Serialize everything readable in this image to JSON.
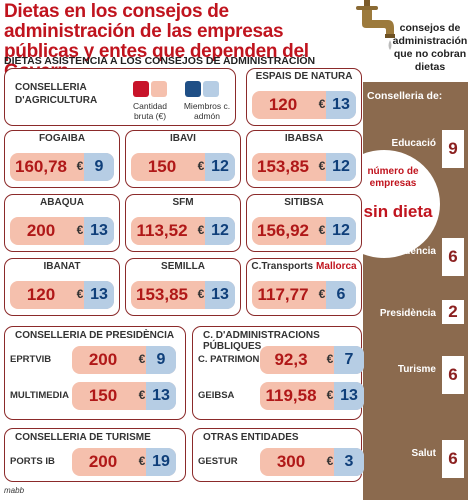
{
  "title": "Dietas en los consejos de administración de las empresas públicas y entes que dependen del Govern",
  "subtitle": "DIETAS ASISTENCIA A LOS CONSEJOS DE ADMINISTRACIÓN",
  "faucet_note": "consejos de administración que no cobran dietas",
  "legend": {
    "conselleria": "CONSELLERIA D'AGRICULTURA",
    "amount_label": "Cantidad bruta (€)",
    "members_label": "Miembros c. admón",
    "amount_color": "#c8142a",
    "amount_light": "#f5c0ad",
    "members_color": "#1f4f86",
    "members_light": "#b6cde4"
  },
  "currency": "€",
  "sidebar": {
    "header": "Conselleria de:",
    "oval_line1": "número de empresas",
    "oval_line2": "sin dieta",
    "bg_color": "#8b6a4e"
  },
  "chart_data": {
    "type": "table",
    "title": "Dietas en los consejos de administración de las empresas públicas y entes que dependen del Govern",
    "groups": [
      {
        "name": "CONSELLERIA D'AGRICULTURA",
        "entities": [
          {
            "name": "ESPAIS DE NATURA",
            "amount": "120",
            "members": "13"
          },
          {
            "name": "FOGAIBA",
            "amount": "160,78",
            "members": "9"
          },
          {
            "name": "IBAVI",
            "amount": "150",
            "members": "12"
          },
          {
            "name": "IBABSA",
            "amount": "153,85",
            "members": "12"
          },
          {
            "name": "ABAQUA",
            "amount": "200",
            "members": "13"
          },
          {
            "name": "SFM",
            "amount": "113,52",
            "members": "12"
          },
          {
            "name": "SITIBSA",
            "amount": "156,92",
            "members": "12"
          },
          {
            "name": "IBANAT",
            "amount": "120",
            "members": "13"
          },
          {
            "name": "SEMILLA",
            "amount": "153,85",
            "members": "13"
          },
          {
            "name": "C.Transports",
            "name_extra": "Mallorca",
            "amount": "117,77",
            "members": "6"
          }
        ]
      },
      {
        "name": "CONSELLERIA DE PRESIDÈNCIA",
        "entities": [
          {
            "name": "EPRTVIB",
            "amount": "200",
            "members": "9"
          },
          {
            "name": "MULTIMEDIA",
            "amount": "150",
            "members": "13"
          }
        ]
      },
      {
        "name": "C. D'ADMINISTRACIONS PÚBLIQUES",
        "entities": [
          {
            "name": "C. PATRIMONI",
            "amount": "92,3",
            "members": "7"
          },
          {
            "name": "GEIBSA",
            "amount": "119,58",
            "members": "13"
          }
        ]
      },
      {
        "name": "CONSELLERIA DE TURISME",
        "entities": [
          {
            "name": "PORTS IB",
            "amount": "200",
            "members": "19"
          }
        ]
      },
      {
        "name": "OTRAS ENTIDADES",
        "entities": [
          {
            "name": "GESTUR",
            "amount": "300",
            "members": "3"
          }
        ]
      }
    ],
    "no_diet_by_conselleria": [
      {
        "name": "Educació",
        "count": 9
      },
      {
        "name": "Vicepresidència",
        "count": 6
      },
      {
        "name": "Presidència",
        "count": 2
      },
      {
        "name": "Turisme",
        "count": 6
      },
      {
        "name": "Salut",
        "count": 6
      }
    ]
  },
  "credit": "mabb"
}
